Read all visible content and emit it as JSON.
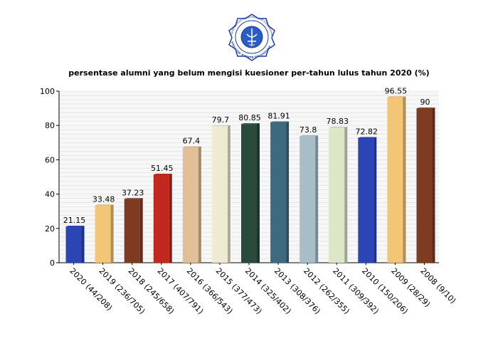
{
  "header": {
    "logo": {
      "name": "university-seal-logo",
      "text_top": "KEMENTERIAN PENDIDIKAN DAN KEBUDAYAAN",
      "text_bottom": "UNIVERSITAS BANGKA BELITUNG"
    }
  },
  "chart_data": {
    "type": "bar",
    "title": "persentase alumni yang belum mengisi kuesioner per-tahun lulus tahun 2020 (%)",
    "xlabel": "",
    "ylabel": "",
    "ylim": [
      0,
      100
    ],
    "yticks": [
      0,
      20,
      40,
      60,
      80,
      100
    ],
    "grid": true,
    "legend": "none",
    "categories": [
      "2020 (44/208)",
      "2019 (236/705)",
      "2018 (245/658)",
      "2017 (407/791)",
      "2016 (366/543)",
      "2015 (377/473)",
      "2014 (325/402)",
      "2013 (308/376)",
      "2012 (262/355)",
      "2011 (309/392)",
      "2010 (150/206)",
      "2009 (28/29)",
      "2008 (9/10)"
    ],
    "values": [
      21.15,
      33.48,
      37.23,
      51.45,
      67.4,
      79.7,
      80.85,
      81.91,
      73.8,
      78.83,
      72.82,
      96.55,
      90
    ],
    "value_labels": [
      "21.15",
      "33.48",
      "37.23",
      "51.45",
      "67.4",
      "79.7",
      "80.85",
      "81.91",
      "73.8",
      "78.83",
      "72.82",
      "96.55",
      "90"
    ],
    "colors": [
      "#2b45b5",
      "#f3c577",
      "#7e3b22",
      "#c3281e",
      "#e3bf99",
      "#efebd2",
      "#2a4a3c",
      "#3e6a80",
      "#a7bdc7",
      "#dbe7c6",
      "#2b45b5",
      "#f3c577",
      "#7e3b22"
    ]
  }
}
